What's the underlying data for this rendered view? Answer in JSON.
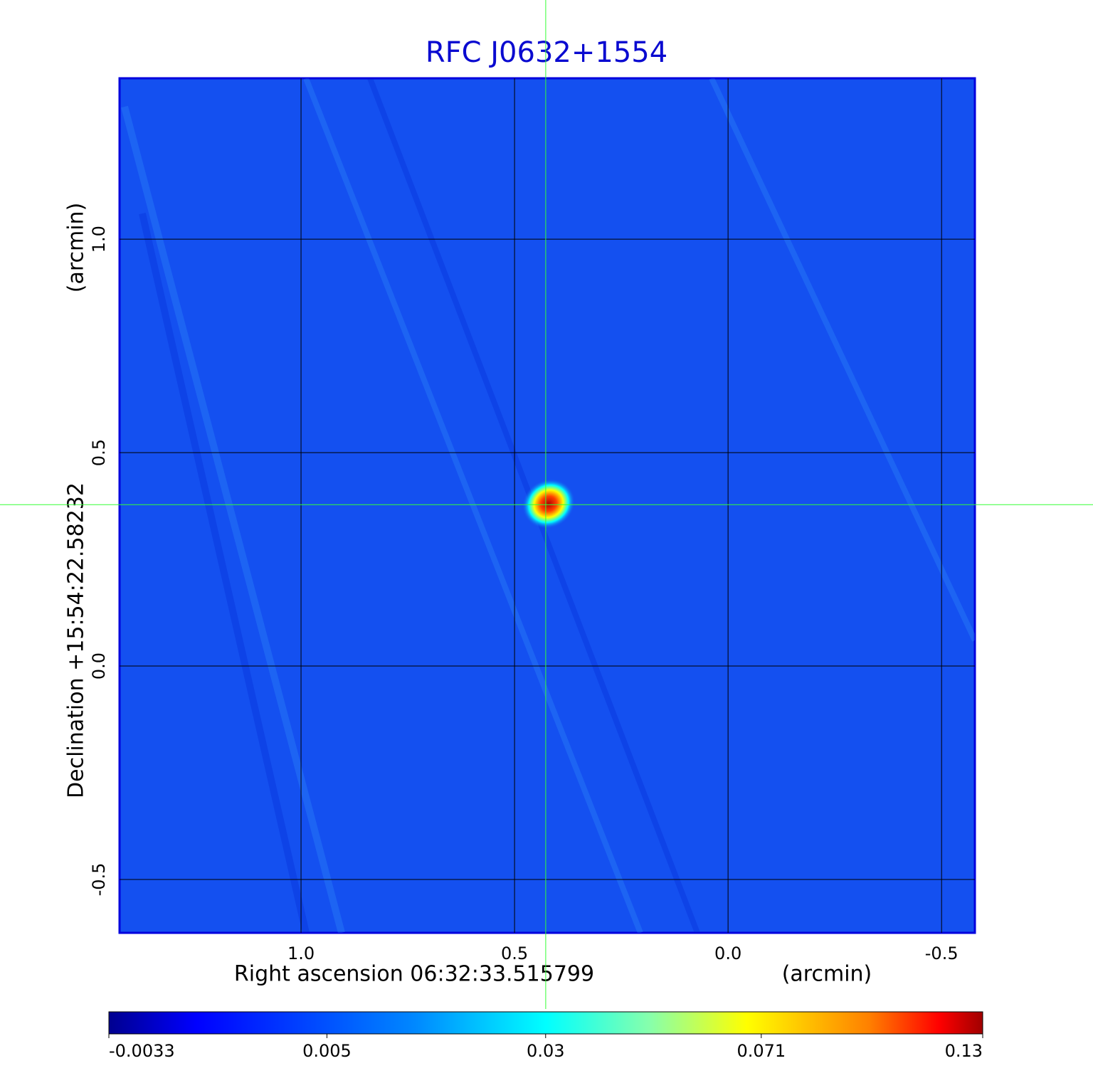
{
  "chart_data": {
    "type": "image",
    "title": "RFC J0632+1554",
    "x_label": "Right ascension  06:32:33.515799",
    "x_unit": "(arcmin)",
    "y_label": "Declination  +15:54:22.58232",
    "y_unit": "(arcmin)",
    "xlim": [
      1.425,
      -0.578
    ],
    "ylim": [
      -0.625,
      1.377
    ],
    "xticks": [
      {
        "value": 1,
        "label": "1.0"
      },
      0.5,
      {
        "value": 0,
        "label": "0.0"
      },
      -0.5
    ],
    "yticks": [
      -0.5,
      {
        "value": 0,
        "label": "0.0"
      },
      0.5,
      {
        "value": 1,
        "label": "1.0"
      }
    ],
    "grid": true,
    "crosshair": {
      "x": 0.427,
      "y": 0.378,
      "color": "#33ff33"
    },
    "colorbar": {
      "scale": "sqrt",
      "lim": [
        -0.0033,
        0.13
      ],
      "ticks": [
        -0.0033,
        0.005,
        0.03,
        0.071,
        0.13
      ]
    }
  }
}
